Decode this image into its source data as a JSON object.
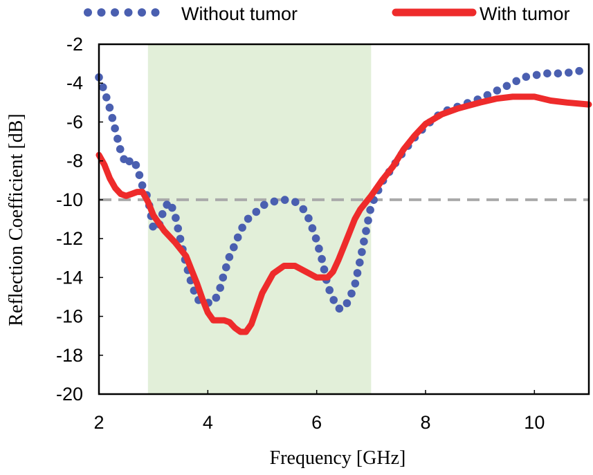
{
  "chart_data": {
    "type": "line",
    "title": "",
    "xlabel": "Frequency [GHz]",
    "ylabel": "Reflection Coefficient [dB]",
    "xlim": [
      2,
      11
    ],
    "ylim": [
      -20,
      -2
    ],
    "xticks": [
      2,
      4,
      6,
      8,
      10
    ],
    "yticks": [
      -20,
      -18,
      -16,
      -14,
      -12,
      -10,
      -8,
      -6,
      -4,
      -2
    ],
    "threshold": -10,
    "highlight_band": [
      2.9,
      7.0
    ],
    "colors": {
      "without_tumor": "#4a5fb0",
      "with_tumor": "#ee2b2b",
      "threshold": "#a9a9a9",
      "band": "#e2efd9",
      "frame": "#000000"
    },
    "legend": {
      "position": "top",
      "entries": [
        "Without tumor",
        "With tumor"
      ]
    },
    "series": [
      {
        "name": "Without tumor",
        "style": "dotted",
        "x": [
          2.0,
          2.1,
          2.2,
          2.3,
          2.4,
          2.5,
          2.6,
          2.7,
          2.8,
          2.9,
          3.0,
          3.1,
          3.2,
          3.3,
          3.4,
          3.5,
          3.6,
          3.7,
          3.8,
          3.9,
          4.0,
          4.1,
          4.2,
          4.3,
          4.4,
          4.5,
          4.6,
          4.7,
          4.8,
          4.9,
          5.0,
          5.2,
          5.4,
          5.6,
          5.8,
          5.9,
          6.0,
          6.1,
          6.2,
          6.3,
          6.4,
          6.5,
          6.6,
          6.7,
          6.8,
          6.9,
          7.0,
          7.1,
          7.2,
          7.4,
          7.6,
          7.8,
          8.0,
          8.3,
          8.6,
          9.0,
          9.3,
          9.6,
          9.8,
          10.0,
          10.2,
          10.5,
          10.8,
          11.0
        ],
        "y": [
          -3.7,
          -4.4,
          -5.3,
          -6.4,
          -7.5,
          -8.2,
          -7.9,
          -8.3,
          -9.3,
          -9.9,
          -11.5,
          -11.4,
          -10.4,
          -10.1,
          -10.8,
          -12.1,
          -13.3,
          -14.3,
          -15.1,
          -15.3,
          -15.3,
          -15.3,
          -14.8,
          -13.8,
          -12.9,
          -12.3,
          -11.6,
          -11.1,
          -10.8,
          -10.6,
          -10.3,
          -10.1,
          -10.0,
          -10.1,
          -10.6,
          -11.3,
          -12.1,
          -13.1,
          -14.4,
          -15.1,
          -15.6,
          -15.6,
          -15.1,
          -14.4,
          -13.1,
          -11.7,
          -10.3,
          -9.7,
          -9.1,
          -8.3,
          -7.5,
          -6.8,
          -6.2,
          -5.5,
          -5.2,
          -4.8,
          -4.4,
          -4.0,
          -3.7,
          -3.6,
          -3.5,
          -3.5,
          -3.4,
          -3.2
        ]
      },
      {
        "name": "With tumor",
        "style": "solid",
        "x": [
          2.0,
          2.1,
          2.2,
          2.3,
          2.4,
          2.5,
          2.6,
          2.7,
          2.8,
          2.9,
          3.0,
          3.2,
          3.4,
          3.6,
          3.7,
          3.8,
          3.9,
          4.0,
          4.1,
          4.2,
          4.3,
          4.4,
          4.5,
          4.6,
          4.7,
          4.8,
          4.9,
          5.0,
          5.2,
          5.4,
          5.6,
          5.8,
          6.0,
          6.2,
          6.3,
          6.4,
          6.5,
          6.6,
          6.7,
          6.8,
          7.0,
          7.2,
          7.4,
          7.6,
          7.8,
          8.0,
          8.3,
          8.6,
          9.0,
          9.3,
          9.6,
          9.8,
          10.0,
          10.3,
          10.6,
          11.0
        ],
        "y": [
          -7.7,
          -8.2,
          -8.9,
          -9.4,
          -9.7,
          -9.8,
          -9.7,
          -9.6,
          -9.6,
          -10.1,
          -10.8,
          -11.6,
          -12.2,
          -12.9,
          -13.6,
          -14.3,
          -15.1,
          -15.8,
          -16.2,
          -16.2,
          -16.2,
          -16.3,
          -16.6,
          -16.8,
          -16.8,
          -16.4,
          -15.6,
          -14.8,
          -13.8,
          -13.4,
          -13.4,
          -13.7,
          -14.0,
          -14.0,
          -13.7,
          -13.1,
          -12.4,
          -11.7,
          -11.0,
          -10.5,
          -9.8,
          -9.0,
          -8.3,
          -7.4,
          -6.7,
          -6.1,
          -5.6,
          -5.3,
          -5.0,
          -4.8,
          -4.7,
          -4.7,
          -4.7,
          -4.9,
          -5.0,
          -5.1
        ]
      }
    ]
  }
}
